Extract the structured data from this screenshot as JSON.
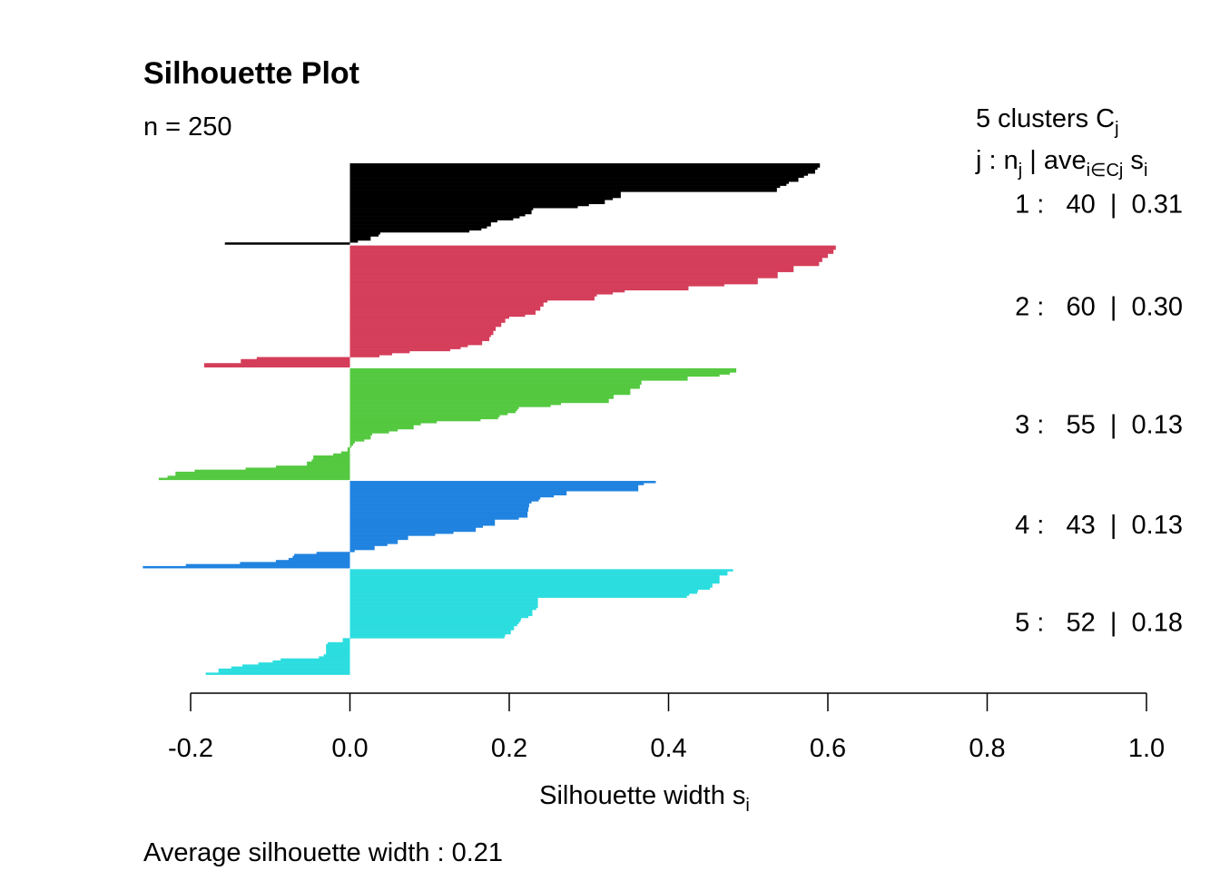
{
  "chart_data": {
    "type": "bar",
    "orientation": "horizontal",
    "title": "Silhouette Plot",
    "subtitle": "n = 250",
    "xlabel": "Silhouette width",
    "xlabel_sub": "i",
    "xlabel_sym": "s",
    "xlim": [
      -0.2,
      1.0
    ],
    "xticks": [
      -0.2,
      0.0,
      0.2,
      0.4,
      0.6,
      0.8,
      1.0
    ],
    "xtick_labels": [
      "-0.2",
      "0.0",
      "0.2",
      "0.4",
      "0.6",
      "0.8",
      "1.0"
    ],
    "grid": false,
    "legend_header": {
      "line1": "5  clusters  C",
      "line1_sub": "j",
      "line2_a": "j :  n",
      "line2_a_sub": "j",
      "line2_b": " | ave",
      "line2_b_sub": "i∈Cj",
      "line2_c": "  s",
      "line2_c_sub": "i"
    },
    "footer": "Average silhouette width :  0.21",
    "clusters": [
      {
        "label": "1 :   40  |  0.31",
        "j": 1,
        "n": 40,
        "ave": 0.31,
        "color": "#000000",
        "values": [
          0.59,
          0.59,
          0.587,
          0.584,
          0.584,
          0.575,
          0.57,
          0.563,
          0.563,
          0.551,
          0.548,
          0.54,
          0.536,
          0.536,
          0.34,
          0.34,
          0.34,
          0.33,
          0.32,
          0.32,
          0.3,
          0.286,
          0.23,
          0.228,
          0.228,
          0.22,
          0.213,
          0.205,
          0.185,
          0.177,
          0.177,
          0.172,
          0.165,
          0.15,
          0.038,
          0.036,
          0.026,
          0.026,
          0.01,
          -0.157
        ]
      },
      {
        "label": "2 :   60  |  0.30",
        "j": 2,
        "n": 60,
        "ave": 0.3,
        "color": "#D53E5A",
        "values": [
          0.61,
          0.61,
          0.607,
          0.607,
          0.6,
          0.6,
          0.593,
          0.593,
          0.589,
          0.589,
          0.557,
          0.557,
          0.557,
          0.537,
          0.537,
          0.537,
          0.512,
          0.512,
          0.512,
          0.47,
          0.425,
          0.425,
          0.345,
          0.33,
          0.31,
          0.307,
          0.307,
          0.248,
          0.243,
          0.243,
          0.239,
          0.239,
          0.233,
          0.233,
          0.22,
          0.2,
          0.195,
          0.195,
          0.19,
          0.19,
          0.183,
          0.183,
          0.18,
          0.18,
          0.177,
          0.175,
          0.175,
          0.166,
          0.166,
          0.148,
          0.139,
          0.126,
          0.075,
          0.053,
          0.037,
          -0.117,
          -0.137,
          -0.137,
          -0.183,
          -0.183
        ]
      },
      {
        "label": "3 :   55  |  0.13",
        "j": 3,
        "n": 55,
        "ave": 0.13,
        "color": "#54C940",
        "values": [
          0.485,
          0.485,
          0.477,
          0.464,
          0.424,
          0.424,
          0.366,
          0.366,
          0.364,
          0.364,
          0.352,
          0.352,
          0.352,
          0.331,
          0.331,
          0.325,
          0.325,
          0.265,
          0.252,
          0.212,
          0.21,
          0.208,
          0.198,
          0.188,
          0.186,
          0.164,
          0.109,
          0.089,
          0.08,
          0.08,
          0.06,
          0.049,
          0.028,
          0.026,
          0.026,
          0.018,
          0.006,
          0.004,
          0.002,
          -0.003,
          -0.003,
          -0.011,
          -0.021,
          -0.046,
          -0.046,
          -0.048,
          -0.054,
          -0.054,
          -0.093,
          -0.131,
          -0.195,
          -0.219,
          -0.219,
          -0.229,
          -0.24
        ]
      },
      {
        "label": "4 :   43  |  0.13",
        "j": 4,
        "n": 43,
        "ave": 0.13,
        "color": "#2083E0",
        "values": [
          0.384,
          0.369,
          0.362,
          0.362,
          0.362,
          0.272,
          0.272,
          0.256,
          0.239,
          0.237,
          0.228,
          0.225,
          0.225,
          0.224,
          0.224,
          0.223,
          0.223,
          0.223,
          0.212,
          0.182,
          0.182,
          0.182,
          0.167,
          0.158,
          0.158,
          0.13,
          0.107,
          0.073,
          0.073,
          0.06,
          0.06,
          0.047,
          0.031,
          0.031,
          0.006,
          -0.042,
          -0.07,
          -0.072,
          -0.077,
          -0.093,
          -0.138,
          -0.206,
          -0.26
        ]
      },
      {
        "label": "5 :   52  |  0.18",
        "j": 5,
        "n": 52,
        "ave": 0.18,
        "color": "#2CDDDF",
        "values": [
          0.481,
          0.474,
          0.474,
          0.464,
          0.464,
          0.464,
          0.464,
          0.455,
          0.455,
          0.452,
          0.437,
          0.436,
          0.426,
          0.423,
          0.236,
          0.236,
          0.236,
          0.236,
          0.236,
          0.234,
          0.229,
          0.229,
          0.229,
          0.224,
          0.215,
          0.214,
          0.212,
          0.21,
          0.206,
          0.206,
          0.202,
          0.202,
          0.195,
          0.194,
          -0.009,
          -0.009,
          -0.028,
          -0.03,
          -0.03,
          -0.03,
          -0.03,
          -0.03,
          -0.033,
          -0.039,
          -0.087,
          -0.097,
          -0.115,
          -0.135,
          -0.149,
          -0.165,
          -0.165,
          -0.181
        ]
      }
    ]
  }
}
